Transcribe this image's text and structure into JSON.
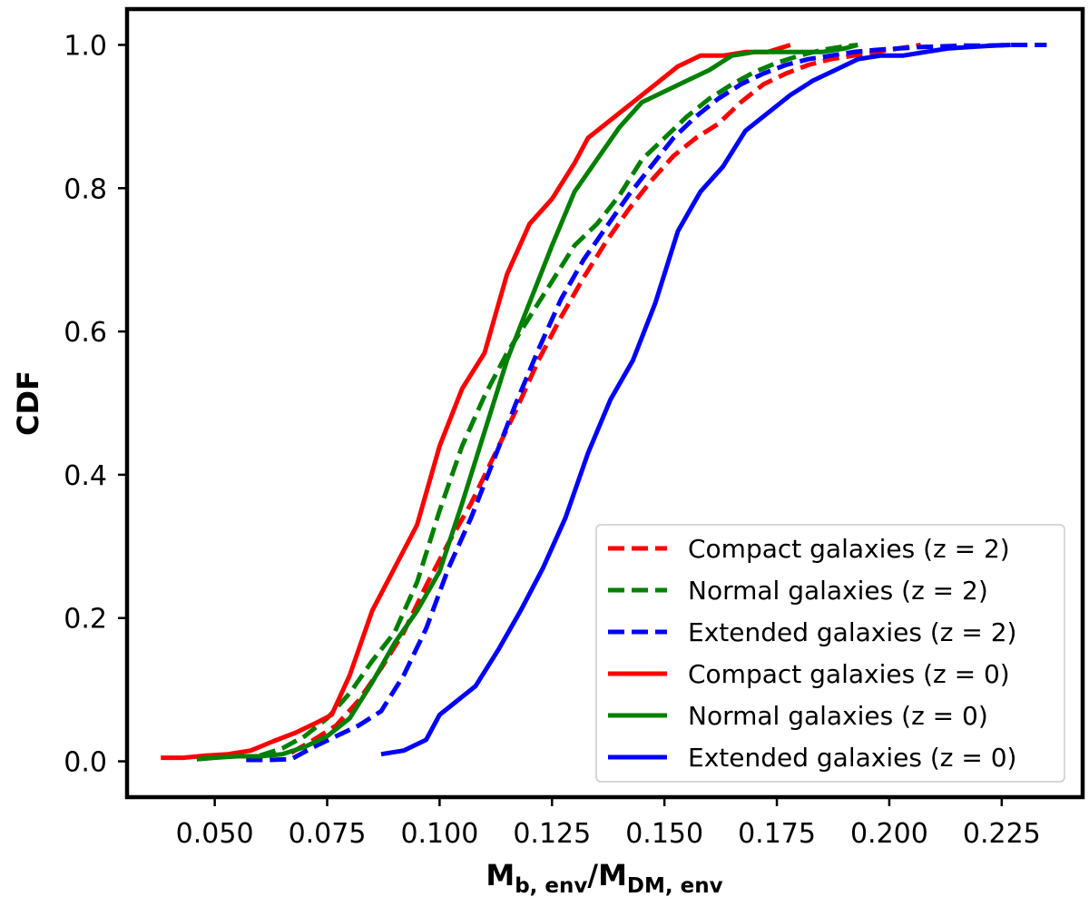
{
  "chart_data": {
    "type": "line",
    "title": "",
    "xlabel_main": "M",
    "xlabel_sub1": "b, env",
    "xlabel_sep": "/M",
    "xlabel_sub2": "DM, env",
    "ylabel": "CDF",
    "xlim": [
      0.0305,
      0.243
    ],
    "ylim": [
      -0.05,
      1.05
    ],
    "xticks": [
      0.05,
      0.075,
      0.1,
      0.125,
      0.15,
      0.175,
      0.2,
      0.225
    ],
    "xtick_labels": [
      "0.050",
      "0.075",
      "0.100",
      "0.125",
      "0.150",
      "0.175",
      "0.200",
      "0.225"
    ],
    "yticks": [
      0.0,
      0.2,
      0.4,
      0.6,
      0.8,
      1.0
    ],
    "ytick_labels": [
      "0.0",
      "0.2",
      "0.4",
      "0.6",
      "0.8",
      "1.0"
    ],
    "grid": false,
    "legend_position": "lower right",
    "series": [
      {
        "name": "Compact galaxies (z = 2)",
        "color": "#ff0000",
        "style": "dashed",
        "x": [
          0.067,
          0.072,
          0.077,
          0.082,
          0.087,
          0.092,
          0.097,
          0.102,
          0.107,
          0.112,
          0.117,
          0.122,
          0.127,
          0.132,
          0.137,
          0.142,
          0.147,
          0.152,
          0.157,
          0.162,
          0.167,
          0.172,
          0.177,
          0.182,
          0.187,
          0.192,
          0.197,
          0.202,
          0.207
        ],
        "values": [
          0.012,
          0.03,
          0.05,
          0.085,
          0.13,
          0.18,
          0.245,
          0.305,
          0.36,
          0.425,
          0.49,
          0.56,
          0.62,
          0.675,
          0.725,
          0.77,
          0.81,
          0.845,
          0.87,
          0.89,
          0.92,
          0.945,
          0.96,
          0.972,
          0.98,
          0.985,
          0.99,
          0.995,
          1.0
        ]
      },
      {
        "name": "Normal galaxies (z = 2)",
        "color": "#008000",
        "style": "dashed",
        "x": [
          0.06,
          0.065,
          0.07,
          0.075,
          0.08,
          0.085,
          0.09,
          0.095,
          0.1,
          0.105,
          0.11,
          0.115,
          0.12,
          0.125,
          0.13,
          0.135,
          0.14,
          0.145,
          0.15,
          0.155,
          0.16,
          0.165,
          0.17,
          0.175,
          0.18,
          0.185,
          0.19,
          0.193
        ],
        "values": [
          0.008,
          0.018,
          0.035,
          0.06,
          0.095,
          0.14,
          0.18,
          0.25,
          0.35,
          0.44,
          0.51,
          0.57,
          0.62,
          0.67,
          0.72,
          0.75,
          0.79,
          0.84,
          0.87,
          0.9,
          0.925,
          0.945,
          0.962,
          0.975,
          0.985,
          0.993,
          0.998,
          1.0
        ]
      },
      {
        "name": "Extended galaxies (z = 2)",
        "color": "#0000ff",
        "style": "dashed",
        "x": [
          0.057,
          0.062,
          0.067,
          0.072,
          0.077,
          0.082,
          0.087,
          0.092,
          0.097,
          0.102,
          0.107,
          0.112,
          0.117,
          0.122,
          0.127,
          0.132,
          0.137,
          0.142,
          0.147,
          0.152,
          0.157,
          0.162,
          0.167,
          0.172,
          0.177,
          0.182,
          0.187,
          0.192,
          0.197,
          0.202,
          0.207,
          0.212,
          0.217,
          0.222,
          0.227,
          0.232,
          0.235
        ],
        "values": [
          0.002,
          0.002,
          0.003,
          0.02,
          0.035,
          0.05,
          0.07,
          0.12,
          0.185,
          0.27,
          0.34,
          0.42,
          0.5,
          0.575,
          0.645,
          0.7,
          0.745,
          0.79,
          0.83,
          0.87,
          0.9,
          0.925,
          0.945,
          0.96,
          0.972,
          0.98,
          0.985,
          0.99,
          0.993,
          0.995,
          0.997,
          0.998,
          0.999,
          0.999,
          1.0,
          1.0,
          1.0
        ]
      },
      {
        "name": "Compact galaxies (z = 0)",
        "color": "#ff0000",
        "style": "solid",
        "x": [
          0.038,
          0.043,
          0.048,
          0.053,
          0.058,
          0.063,
          0.068,
          0.073,
          0.076,
          0.08,
          0.085,
          0.09,
          0.095,
          0.1,
          0.105,
          0.11,
          0.115,
          0.12,
          0.125,
          0.13,
          0.133,
          0.138,
          0.143,
          0.148,
          0.153,
          0.158,
          0.163,
          0.168,
          0.173,
          0.178
        ],
        "values": [
          0.005,
          0.005,
          0.008,
          0.01,
          0.015,
          0.028,
          0.04,
          0.055,
          0.065,
          0.12,
          0.21,
          0.27,
          0.33,
          0.44,
          0.52,
          0.57,
          0.68,
          0.75,
          0.785,
          0.835,
          0.87,
          0.895,
          0.92,
          0.945,
          0.97,
          0.985,
          0.985,
          0.99,
          0.99,
          1.0
        ]
      },
      {
        "name": "Normal galaxies (z = 0)",
        "color": "#008000",
        "style": "solid",
        "x": [
          0.046,
          0.05,
          0.055,
          0.06,
          0.065,
          0.07,
          0.075,
          0.08,
          0.085,
          0.09,
          0.095,
          0.1,
          0.105,
          0.11,
          0.115,
          0.12,
          0.125,
          0.13,
          0.135,
          0.14,
          0.145,
          0.15,
          0.155,
          0.16,
          0.165,
          0.17,
          0.175,
          0.18,
          0.185,
          0.19,
          0.193
        ],
        "values": [
          0.003,
          0.005,
          0.007,
          0.007,
          0.01,
          0.02,
          0.035,
          0.06,
          0.11,
          0.165,
          0.21,
          0.265,
          0.36,
          0.46,
          0.56,
          0.64,
          0.72,
          0.795,
          0.84,
          0.885,
          0.92,
          0.935,
          0.95,
          0.965,
          0.985,
          0.99,
          0.99,
          0.99,
          0.99,
          0.995,
          1.0
        ]
      },
      {
        "name": "Extended galaxies (z = 0)",
        "color": "#0000ff",
        "style": "solid",
        "x": [
          0.087,
          0.092,
          0.097,
          0.1,
          0.104,
          0.108,
          0.113,
          0.118,
          0.123,
          0.128,
          0.133,
          0.138,
          0.143,
          0.148,
          0.153,
          0.158,
          0.163,
          0.168,
          0.173,
          0.178,
          0.183,
          0.188,
          0.193,
          0.198,
          0.203,
          0.208,
          0.213,
          0.218,
          0.223,
          0.227
        ],
        "values": [
          0.01,
          0.015,
          0.03,
          0.065,
          0.085,
          0.105,
          0.155,
          0.21,
          0.27,
          0.34,
          0.43,
          0.505,
          0.56,
          0.64,
          0.74,
          0.795,
          0.83,
          0.88,
          0.905,
          0.93,
          0.95,
          0.965,
          0.98,
          0.985,
          0.985,
          0.99,
          0.995,
          0.997,
          0.999,
          1.0
        ]
      }
    ]
  }
}
